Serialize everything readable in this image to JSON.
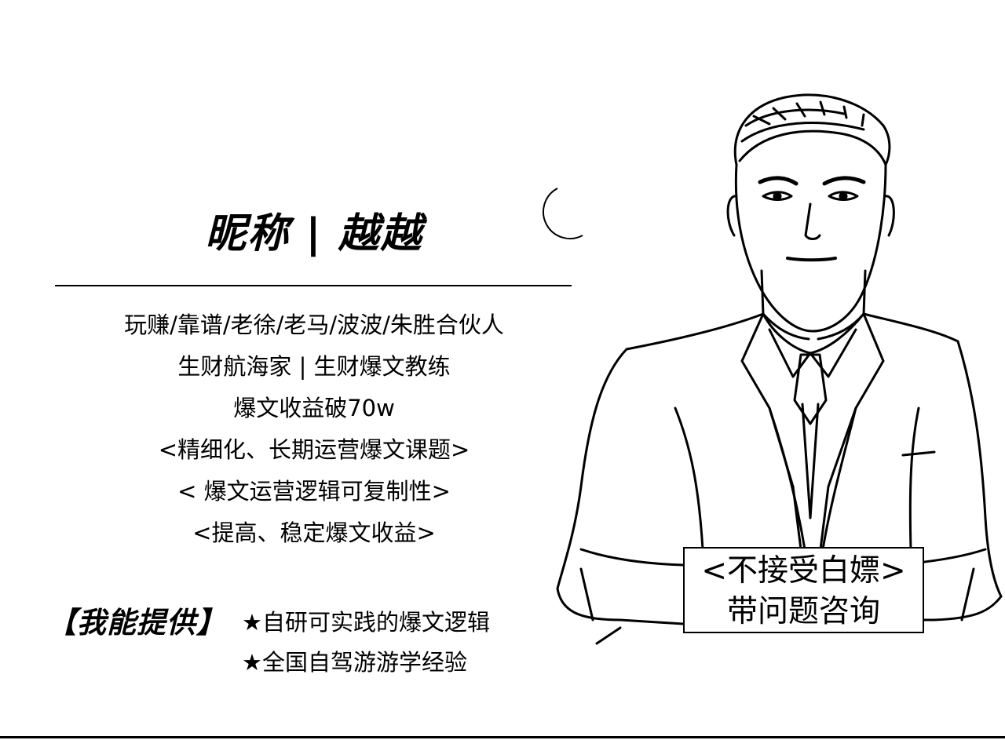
{
  "profile": {
    "nickname_title": "昵称 | 越越",
    "intro_lines": [
      "玩赚/靠谱/老徐/老马/波波/朱胜合伙人",
      "生财航海家 | 生财爆文教练",
      "爆文收益破70w",
      "<精细化、长期运营爆文课题>",
      "< 爆文运营逻辑可复制性>",
      "<提高、稳定爆文收益>"
    ]
  },
  "offer": {
    "label": "【我能提供】",
    "items": [
      "★自研可实践的爆文逻辑",
      "★全国自驾游游学经验"
    ]
  },
  "badge": {
    "line1": "<不接受白嫖>",
    "line2": "带问题咨询"
  },
  "icons": {
    "portrait": "man-in-suit-sketch",
    "decoration": "crescent-moon"
  }
}
